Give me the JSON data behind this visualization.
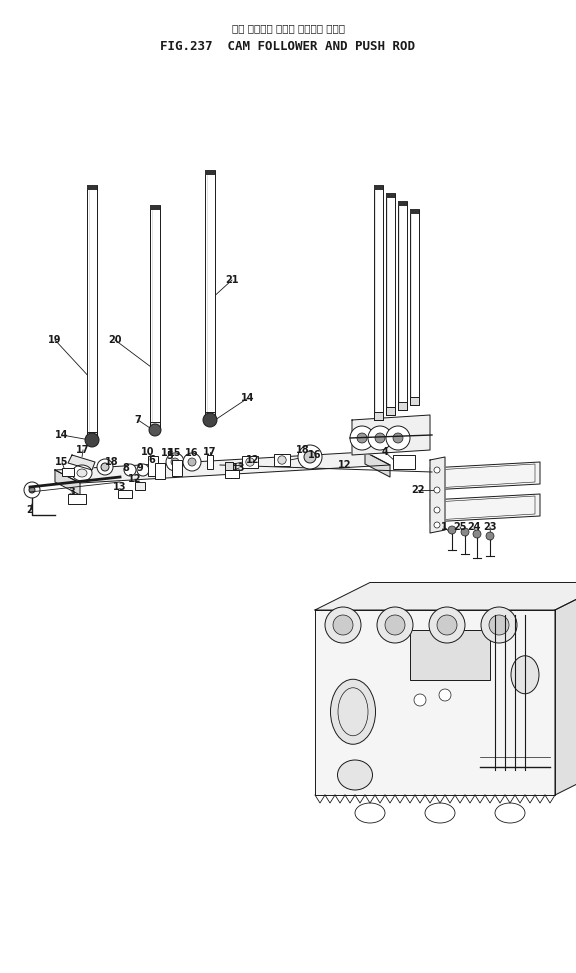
{
  "title_japanese": "カム フォロワ および プッシュ ロッド",
  "title_english": "FIG.237  CAM FOLLOWER AND PUSH ROD",
  "bg_color": "#ffffff",
  "line_color": "#1a1a1a",
  "fig_width": 5.76,
  "fig_height": 9.73,
  "dpi": 100
}
